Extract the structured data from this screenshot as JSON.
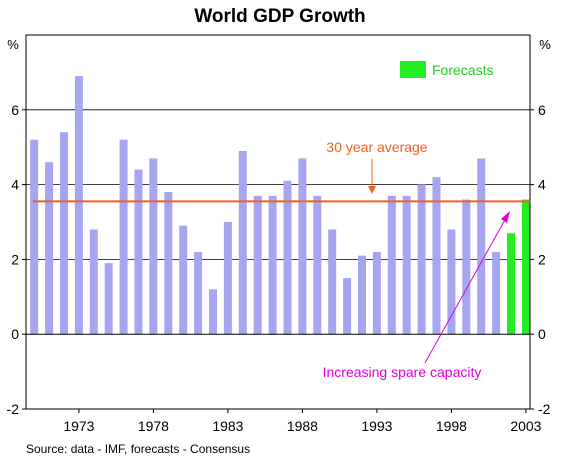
{
  "chart_data": {
    "type": "bar",
    "title": "World GDP Growth",
    "unit_left": "%",
    "unit_right": "%",
    "source": "Source: data - IMF, forecasts - Consensus",
    "ylim": [
      -2,
      8
    ],
    "y_ticks": [
      -2,
      0,
      2,
      4,
      6
    ],
    "x_tick_labels": [
      "1973",
      "1978",
      "1983",
      "1988",
      "1993",
      "1998",
      "2003"
    ],
    "grid": "horizontal",
    "x": [
      1970,
      1971,
      1972,
      1973,
      1974,
      1975,
      1976,
      1977,
      1978,
      1979,
      1980,
      1981,
      1982,
      1983,
      1984,
      1985,
      1986,
      1987,
      1988,
      1989,
      1990,
      1991,
      1992,
      1993,
      1994,
      1995,
      1996,
      1997,
      1998,
      1999,
      2000,
      2001,
      2002,
      2003
    ],
    "series": [
      {
        "name": "",
        "color": "#a6a6f0",
        "values": [
          5.2,
          4.6,
          5.4,
          6.9,
          2.8,
          1.9,
          5.2,
          4.4,
          4.7,
          3.8,
          2.9,
          2.2,
          1.2,
          3.0,
          4.9,
          3.7,
          3.7,
          4.1,
          4.7,
          3.7,
          2.8,
          1.5,
          2.1,
          2.2,
          3.7,
          3.7,
          4.0,
          4.2,
          2.8,
          3.6,
          4.7,
          2.2,
          null,
          null
        ]
      },
      {
        "name": "Forecasts",
        "color": "#22ee22",
        "values": [
          null,
          null,
          null,
          null,
          null,
          null,
          null,
          null,
          null,
          null,
          null,
          null,
          null,
          null,
          null,
          null,
          null,
          null,
          null,
          null,
          null,
          null,
          null,
          null,
          null,
          null,
          null,
          null,
          null,
          null,
          null,
          null,
          2.7,
          3.6
        ]
      }
    ],
    "reference_line": {
      "label": "30 year average",
      "value": 3.55,
      "color": "#f06020"
    },
    "legend": {
      "label": "Forecasts",
      "position": "top-right",
      "color": "#22ee22"
    },
    "annotation": {
      "text": "Increasing spare capacity",
      "color": "#dd00dd"
    }
  }
}
